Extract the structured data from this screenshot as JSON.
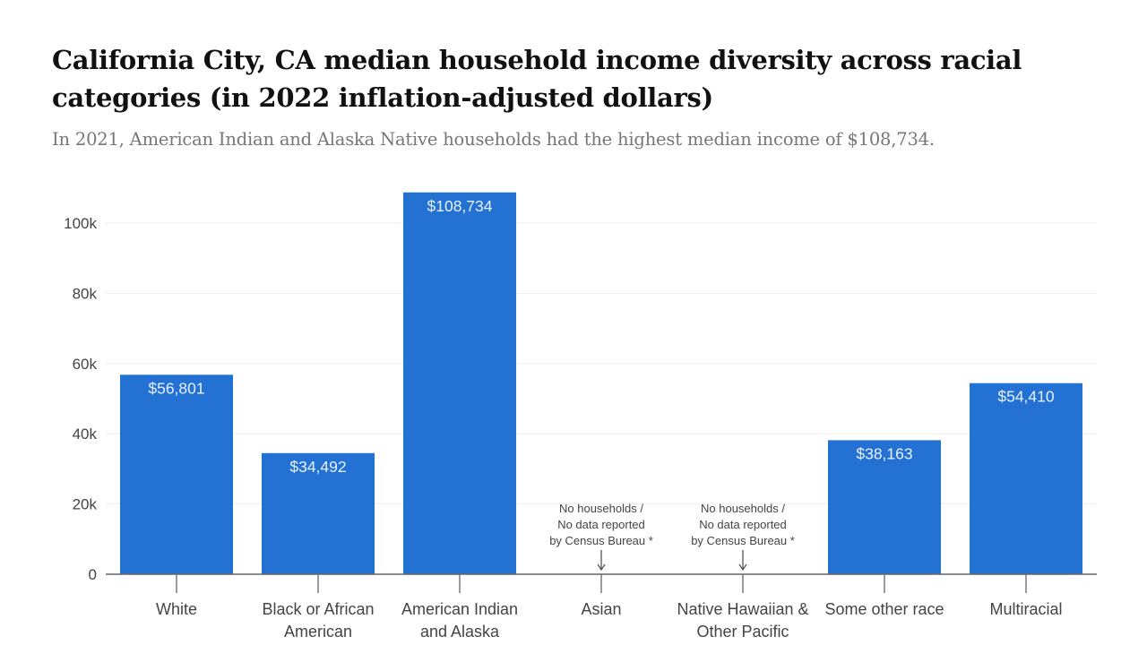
{
  "title": "California City, CA median household income diversity across racial categories (in 2022 inflation-adjusted dollars)",
  "subtitle": "In 2021, American Indian and Alaska Native households had the highest median income of $108,734.",
  "chart_data": {
    "type": "bar",
    "title": "California City, CA median household income diversity across racial categories (in 2022 inflation-adjusted dollars)",
    "subtitle": "In 2021, American Indian and Alaska Native households had the highest median income of $108,734.",
    "categories": [
      [
        "White"
      ],
      [
        "Black or African",
        "American"
      ],
      [
        "American Indian",
        "and Alaska"
      ],
      [
        "Asian"
      ],
      [
        "Native Hawaiian &",
        "Other Pacific"
      ],
      [
        "Some other race"
      ],
      [
        "Multiracial"
      ]
    ],
    "values": [
      56801,
      34492,
      108734,
      null,
      null,
      38163,
      54410
    ],
    "data_labels": [
      "$56,801",
      "$34,492",
      "$108,734",
      "",
      "",
      "$38,163",
      "$54,410"
    ],
    "missing_note": [
      "No households /",
      "No data reported",
      "by Census Bureau *"
    ],
    "ylim": [
      0,
      110000
    ],
    "yticks": [
      0,
      20000,
      40000,
      60000,
      80000,
      100000
    ],
    "ytick_labels": [
      "0",
      "20k",
      "40k",
      "60k",
      "80k",
      "100k"
    ],
    "grid": true,
    "bar_color": "#2371d3"
  }
}
